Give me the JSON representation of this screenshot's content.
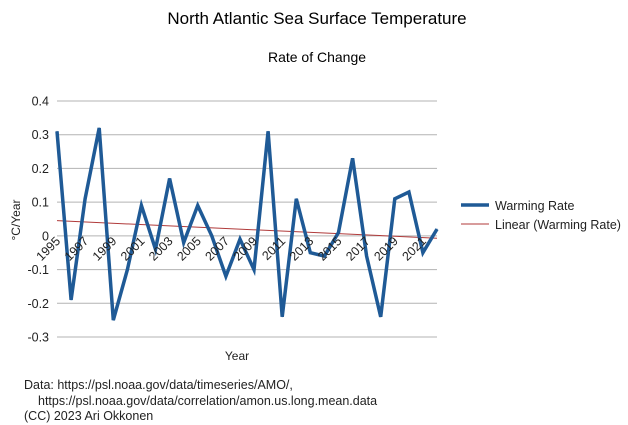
{
  "chart_data": {
    "type": "line",
    "title": "North Atlantic Sea Surface Temperature",
    "subtitle": "Rate of Change",
    "xlabel": "Year",
    "ylabel": "°C/Year",
    "x": [
      1995,
      1996,
      1997,
      1998,
      1999,
      2000,
      2001,
      2002,
      2003,
      2004,
      2005,
      2006,
      2007,
      2008,
      2009,
      2010,
      2011,
      2012,
      2013,
      2014,
      2015,
      2016,
      2017,
      2018,
      2019,
      2020,
      2021,
      2022
    ],
    "x_tick_labels": [
      "1995",
      "1997",
      "1999",
      "2001",
      "2003",
      "2005",
      "2007",
      "2009",
      "2011",
      "2013",
      "2015",
      "2017",
      "2019",
      "2021"
    ],
    "ylim": [
      -0.3,
      0.4
    ],
    "y_ticks": [
      "-0.3",
      "-0.2",
      "-0.1",
      "0",
      "0.1",
      "0.2",
      "0.3",
      "0.4"
    ],
    "grid": true,
    "legend_position": "right",
    "series": [
      {
        "name": "Warming Rate",
        "color": "#1f5a96",
        "values": [
          0.31,
          -0.19,
          0.11,
          0.32,
          -0.25,
          -0.1,
          0.09,
          -0.04,
          0.17,
          -0.02,
          0.09,
          0.0,
          -0.12,
          -0.01,
          -0.1,
          0.31,
          -0.24,
          0.11,
          -0.05,
          -0.06,
          0.01,
          0.23,
          -0.06,
          -0.24,
          0.11,
          0.13,
          -0.05,
          0.02
        ]
      },
      {
        "name": "Linear (Warming Rate)",
        "color": "#b03a3a",
        "values_trend": [
          0.045,
          -0.007
        ]
      }
    ]
  },
  "footer": {
    "line1": "Data: https://psl.noaa.gov/data/timeseries/AMO/,",
    "line2": "https://psl.noaa.gov/data/correlation/amon.us.long.mean.data",
    "line3": "(CC) 2023 Ari Okkonen"
  }
}
